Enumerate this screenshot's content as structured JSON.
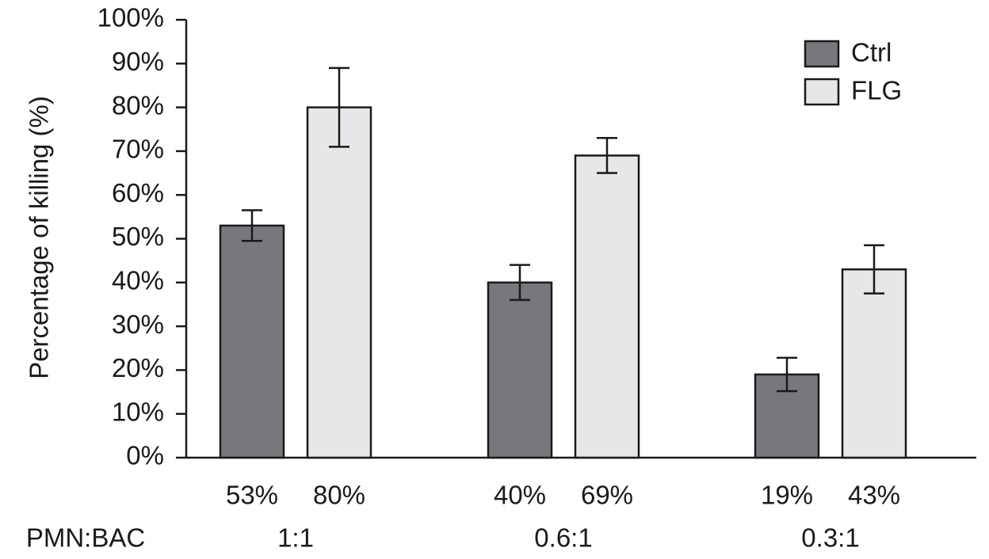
{
  "chart_data": {
    "type": "bar",
    "y_label": "Percentage of killing (%)",
    "x_label": "PMN:BAC",
    "categories": [
      "1:1",
      "0.6:1",
      "0.3:1"
    ],
    "series": [
      {
        "name": "Ctrl",
        "color": "#76787c",
        "values": [
          53,
          40,
          19
        ],
        "value_labels": [
          "53%",
          "40%",
          "19%"
        ],
        "errors": [
          3.5,
          4,
          3.8
        ]
      },
      {
        "name": "FLG",
        "color": "#e6e7e8",
        "values": [
          80,
          69,
          43
        ],
        "value_labels": [
          "80%",
          "69%",
          "43%"
        ],
        "errors": [
          9,
          4,
          5.5
        ]
      }
    ],
    "ylim": [
      0,
      100
    ],
    "yticks": [
      {
        "value": 0,
        "label": "0%"
      },
      {
        "value": 10,
        "label": "10%"
      },
      {
        "value": 20,
        "label": "20%"
      },
      {
        "value": 30,
        "label": "30%"
      },
      {
        "value": 40,
        "label": "40%"
      },
      {
        "value": 50,
        "label": "50%"
      },
      {
        "value": 60,
        "label": "60%"
      },
      {
        "value": 70,
        "label": "70%"
      },
      {
        "value": 80,
        "label": "80%"
      },
      {
        "value": 90,
        "label": "90%"
      },
      {
        "value": 100,
        "label": "100%"
      }
    ],
    "legend": "top-right"
  }
}
